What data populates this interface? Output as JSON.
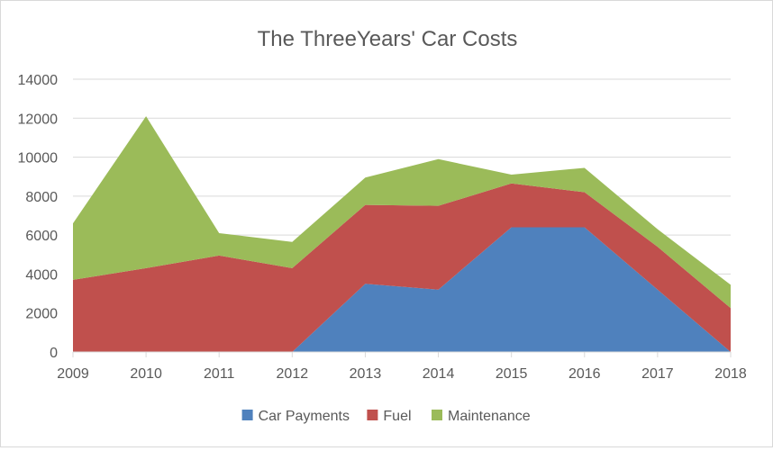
{
  "chart_data": {
    "type": "area",
    "stacked": true,
    "title": "The ThreeYears' Car Costs",
    "x": [
      "2009",
      "2010",
      "2011",
      "2012",
      "2013",
      "2014",
      "2015",
      "2016",
      "2017",
      "2018"
    ],
    "ylim": [
      0,
      14000
    ],
    "yticks": [
      0,
      2000,
      4000,
      6000,
      8000,
      10000,
      12000,
      14000
    ],
    "grid": true,
    "legend_position": "bottom",
    "series": [
      {
        "name": "Car Payments",
        "color": "#4F81BD",
        "values": [
          0,
          0,
          0,
          0,
          3500,
          3200,
          6400,
          6400,
          3200,
          0
        ]
      },
      {
        "name": "Fuel",
        "color": "#C0504D",
        "values": [
          3700,
          4300,
          4950,
          4300,
          4050,
          4300,
          2250,
          1800,
          2200,
          2250
        ]
      },
      {
        "name": "Maintenance",
        "color": "#9BBB59",
        "values": [
          2900,
          7800,
          1150,
          1350,
          1400,
          2400,
          450,
          1250,
          900,
          1200
        ]
      }
    ]
  }
}
